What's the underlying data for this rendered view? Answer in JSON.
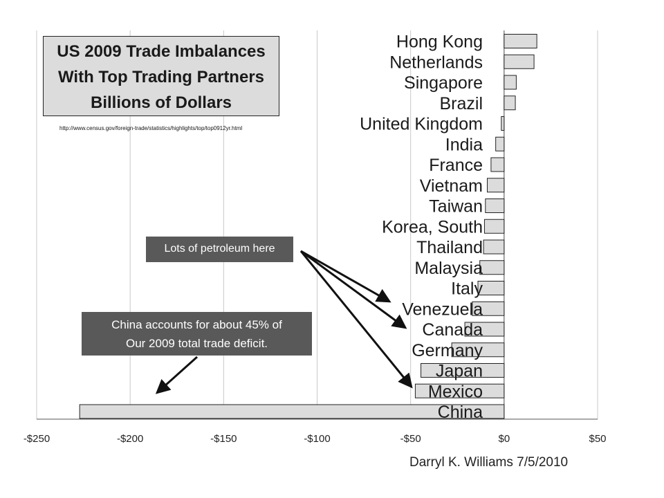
{
  "chart_data": {
    "type": "bar",
    "orientation": "horizontal",
    "title": [
      "US 2009 Trade Imbalances",
      "With Top Trading Partners",
      "Billions of Dollars"
    ],
    "source_url": "http://www.census.gov/foreign-trade/statistics/highlights/top/top0912yr.html",
    "categories": [
      "Hong Kong",
      "Netherlands",
      "Singapore",
      "Brazil",
      "United Kingdom",
      "India",
      "France",
      "Vietnam",
      "Taiwan",
      "Korea, South",
      "Thailand",
      "Malaysia",
      "Italy",
      "Venezuela",
      "Canada",
      "Germany",
      "Japan",
      "Mexico",
      "China"
    ],
    "values": [
      17.5,
      16.0,
      6.5,
      6.0,
      -1.5,
      -4.5,
      -7.0,
      -9.0,
      -10.0,
      -10.5,
      -11.0,
      -13.0,
      -14.0,
      -17.0,
      -21.0,
      -28.0,
      -44.5,
      -47.5,
      -227.0
    ],
    "xlim": [
      -250,
      50
    ],
    "xticks": [
      -250,
      -200,
      -150,
      -100,
      -50,
      0,
      50
    ],
    "xtick_labels": [
      "-$250",
      "-$200",
      "-$150",
      "-$100",
      "-$50",
      "$0",
      "$50"
    ],
    "grid": "vertical",
    "bar_color": "#dcdcdc",
    "annotations": [
      {
        "text": "Lots of petroleum here",
        "points_to": [
          "Venezuela",
          "Canada",
          "Mexico"
        ]
      },
      {
        "text": [
          "China accounts for about 45% of",
          "Our 2009 total trade deficit."
        ],
        "points_to": [
          "China"
        ]
      }
    ],
    "author": "Darryl K. Williams 7/5/2010"
  }
}
